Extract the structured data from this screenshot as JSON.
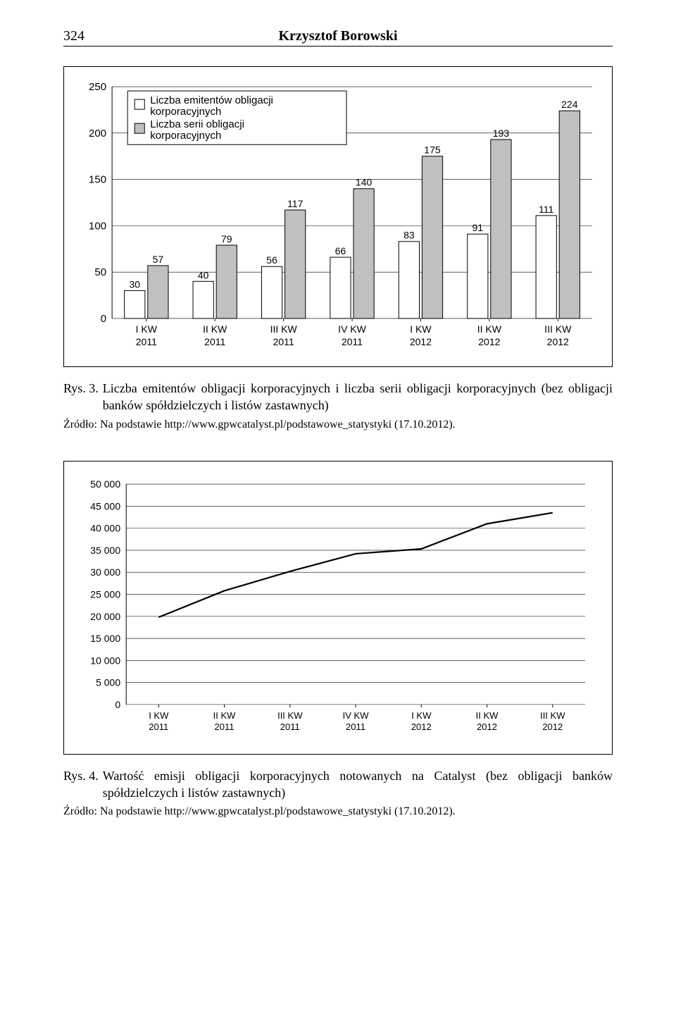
{
  "header": {
    "page_number": "324",
    "author": "Krzysztof Borowski"
  },
  "fig3": {
    "type": "bar",
    "categories": [
      "I KW 2011",
      "II KW 2011",
      "III KW 2011",
      "IV KW 2011",
      "I KW 2012",
      "II KW 2012",
      "III KW 2012"
    ],
    "series": [
      {
        "name": "Liczba emitentów obligacji korporacyjnych",
        "values": [
          30,
          40,
          56,
          66,
          83,
          91,
          111
        ],
        "fill": "#ffffff",
        "stroke": "#000000"
      },
      {
        "name": "Liczba serii obligacji korporacyjnych",
        "values": [
          57,
          79,
          117,
          140,
          175,
          193,
          224
        ],
        "fill": "#c0c0c0",
        "stroke": "#000000"
      }
    ],
    "ylim": [
      0,
      250
    ],
    "ytick_step": 50,
    "tick_fontsize": 15,
    "value_fontsize": 14,
    "cat_fontsize": 14,
    "legend_fontsize": 15,
    "grid_color": "#000000",
    "background_color": "#ffffff",
    "caption_label": "Rys. 3.",
    "caption_text": "Liczba emitentów obligacji korporacyjnych i liczba serii obligacji korporacyjnych (bez obligacji banków spółdzielczych i listów zastawnych)",
    "source": "Źródło: Na podstawie http://www.gpwcatalyst.pl/podstawowe_statystyki (17.10.2012)."
  },
  "fig4": {
    "type": "line",
    "categories": [
      "I KW 2011",
      "II KW 2011",
      "III KW 2011",
      "IV KW 2011",
      "I KW 2012",
      "II KW 2012",
      "III KW 2012"
    ],
    "values": [
      19800,
      25800,
      30200,
      34200,
      35300,
      41000,
      43500
    ],
    "line_color": "#000000",
    "line_width": 2.2,
    "ylim": [
      0,
      50000
    ],
    "ytick_step": 5000,
    "tick_fontsize": 14,
    "cat_fontsize": 13,
    "grid_color": "#000000",
    "background_color": "#ffffff",
    "caption_label": "Rys. 4.",
    "caption_text": "Wartość emisji obligacji korporacyjnych notowanych na Catalyst (bez obligacji banków spółdzielczych i listów zastawnych)",
    "source": "Źródło: Na podstawie http://www.gpwcatalyst.pl/podstawowe_statystyki (17.10.2012)."
  }
}
